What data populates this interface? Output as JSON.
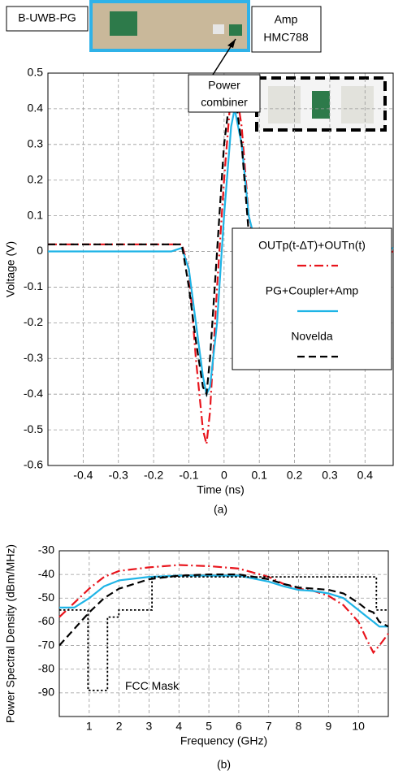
{
  "chart_data": [
    {
      "type": "line",
      "xlabel": "Time (ns)",
      "ylabel": "Voltage (V)",
      "caption": "(a)",
      "annotations": [
        "B-UWB-PG",
        "Amp",
        "HMC788",
        "Power",
        "combiner"
      ],
      "xlim": [
        -0.5,
        0.48
      ],
      "ylim": [
        -0.6,
        0.5
      ],
      "xticks": [
        -0.4,
        -0.3,
        -0.2,
        -0.1,
        0,
        0.1,
        0.2,
        0.3,
        0.4
      ],
      "yticks": [
        -0.6,
        -0.5,
        -0.4,
        -0.3,
        -0.2,
        -0.1,
        0,
        0.1,
        0.2,
        0.3,
        0.4,
        0.5
      ],
      "grid": true,
      "legend": "lower right",
      "x": [
        -0.5,
        -0.3,
        -0.15,
        -0.12,
        -0.1,
        -0.08,
        -0.06,
        -0.05,
        -0.04,
        -0.02,
        0,
        0.02,
        0.03,
        0.05,
        0.07,
        0.09,
        0.12,
        0.15,
        0.2,
        0.25,
        0.3,
        0.35,
        0.4,
        0.45,
        0.48
      ],
      "series": [
        {
          "name": "OUTp(t-ΔT)+OUTn(t)",
          "color": "#e8141c",
          "linestyle": "dashdot",
          "values": [
            0.02,
            0.02,
            0.02,
            0.02,
            -0.05,
            -0.3,
            -0.5,
            -0.54,
            -0.45,
            -0.1,
            0.2,
            0.45,
            0.48,
            0.35,
            0.1,
            0.0,
            0.0,
            0.02,
            0.0,
            0.01,
            -0.04,
            0.0,
            0.02,
            -0.01,
            0.0
          ]
        },
        {
          "name": "PG+Coupler+Amp",
          "color": "#1eb4e6",
          "linestyle": "solid",
          "values": [
            0.0,
            0.0,
            0.0,
            0.01,
            -0.05,
            -0.2,
            -0.35,
            -0.4,
            -0.38,
            -0.2,
            0.1,
            0.35,
            0.4,
            0.3,
            0.1,
            0.02,
            0.03,
            0.04,
            0.05,
            0.0,
            -0.03,
            0.03,
            0.04,
            0.0,
            0.01
          ]
        },
        {
          "name": "Novelda",
          "color": "#000000",
          "linestyle": "dashed",
          "values": [
            0.02,
            0.02,
            0.02,
            0.02,
            -0.1,
            -0.25,
            -0.38,
            -0.4,
            -0.3,
            0.0,
            0.3,
            0.46,
            0.45,
            0.3,
            0.05,
            0.0,
            0.0,
            0.03,
            0.04,
            0.02,
            -0.03,
            0.0,
            0.03,
            0.0,
            0.0
          ]
        }
      ]
    },
    {
      "type": "line",
      "xlabel": "Frequency (GHz)",
      "ylabel": "Power Spectral Density (dBm/MHz)",
      "caption": "(b)",
      "xlim": [
        0,
        11
      ],
      "ylim": [
        -100,
        -30
      ],
      "xticks": [
        1,
        2,
        3,
        4,
        5,
        6,
        7,
        8,
        9,
        10
      ],
      "yticks": [
        -90,
        -80,
        -70,
        -60,
        -50,
        -40,
        -30
      ],
      "grid": true,
      "series": [
        {
          "color": "#e8141c",
          "linestyle": "dashdot",
          "x": [
            0,
            0.5,
            1,
            1.5,
            2,
            3,
            4,
            5,
            6,
            7,
            7.5,
            8,
            8.5,
            9,
            9.5,
            10,
            10.3,
            10.5,
            10.7,
            11
          ],
          "values": [
            -58,
            -52,
            -46,
            -41,
            -38.5,
            -37,
            -36,
            -36.5,
            -37.5,
            -41,
            -44,
            -46,
            -47,
            -49,
            -53,
            -60,
            -68,
            -73,
            -70,
            -65
          ]
        },
        {
          "color": "#1eb4e6",
          "linestyle": "solid",
          "x": [
            0,
            0.5,
            1,
            1.5,
            2,
            3,
            4,
            5,
            6,
            7,
            7.5,
            8,
            8.5,
            9,
            9.5,
            10,
            10.3,
            10.5,
            10.7,
            11
          ],
          "values": [
            -54,
            -54,
            -50,
            -45,
            -42.5,
            -41,
            -40.5,
            -40.5,
            -40.5,
            -43,
            -45,
            -46.5,
            -47,
            -48,
            -50,
            -55,
            -58,
            -60,
            -62,
            -62
          ]
        },
        {
          "color": "#000000",
          "linestyle": "dashed",
          "x": [
            0,
            0.5,
            1,
            1.5,
            2,
            3,
            4,
            5,
            6,
            7,
            7.5,
            8,
            8.5,
            9,
            9.5,
            10,
            10.3,
            10.5,
            10.7,
            11
          ],
          "values": [
            -70,
            -63,
            -56,
            -50,
            -46,
            -42,
            -40.5,
            -40,
            -40,
            -42,
            -44,
            -45.5,
            -46,
            -46.5,
            -48,
            -52,
            -55,
            -56,
            -60,
            -62
          ]
        },
        {
          "name": "FCC Mask",
          "color": "#000000",
          "linestyle": "dotted",
          "x": [
            0,
            0.96,
            0.96,
            1.61,
            1.61,
            1.99,
            1.99,
            3.1,
            3.1,
            10.6,
            10.6,
            11
          ],
          "values": [
            -55,
            -55,
            -89,
            -89,
            -58,
            -58,
            -55,
            -55,
            -41,
            -41,
            -55,
            -55
          ]
        }
      ]
    }
  ]
}
